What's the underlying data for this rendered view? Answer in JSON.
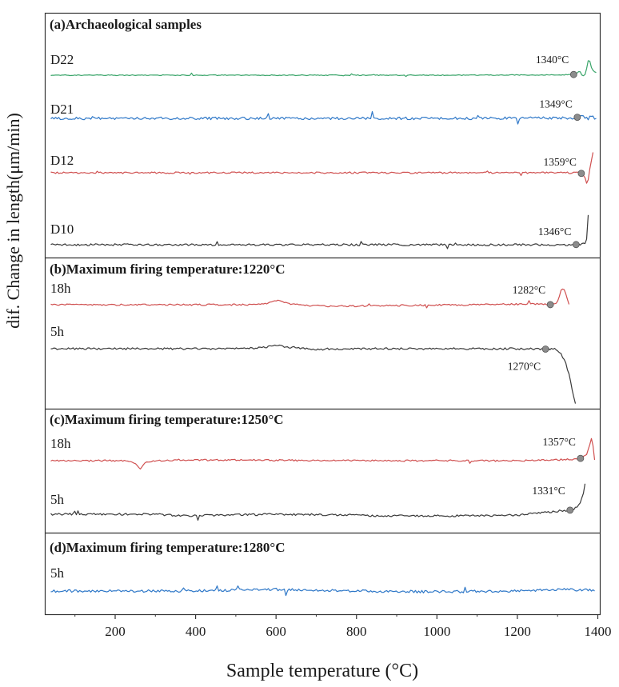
{
  "chart_data": {
    "type": "line",
    "xlabel": "Sample temperature (°C)",
    "ylabel": "dif. Change in length(μm/min)",
    "xlim": [
      25,
      1405
    ],
    "xticks": [
      200,
      400,
      600,
      800,
      1000,
      1200,
      1400
    ],
    "grid": false,
    "colors": {
      "black": "#3a3a3a",
      "red": "#d05050",
      "green": "#3aa56a",
      "blue": "#2f78c8",
      "marker": "#8c8c8c"
    },
    "panels": [
      {
        "title": "(a)Archaeological samples",
        "series": [
          {
            "name": "D22",
            "color": "green",
            "x_start": 40,
            "x_end": 1398,
            "mark_x": 1340,
            "mark_label": "1340°C",
            "profile": [
              [
                40,
                0
              ],
              [
                600,
                0
              ],
              [
                1000,
                0
              ],
              [
                1330,
                0.5
              ],
              [
                1345,
                1
              ],
              [
                1355,
                6
              ],
              [
                1362,
                -2
              ],
              [
                1370,
                2
              ],
              [
                1378,
                22
              ],
              [
                1385,
                8
              ],
              [
                1391,
                4
              ],
              [
                1398,
                3
              ]
            ]
          },
          {
            "name": "D21",
            "color": "blue",
            "x_start": 40,
            "x_end": 1398,
            "mark_x": 1349,
            "mark_label": "1349°C",
            "profile": [
              [
                40,
                0
              ],
              [
                1000,
                0
              ],
              [
                1340,
                0.5
              ],
              [
                1355,
                2
              ],
              [
                1360,
                5
              ],
              [
                1366,
                1
              ],
              [
                1376,
                3
              ],
              [
                1386,
                2
              ],
              [
                1398,
                -1
              ]
            ]
          },
          {
            "name": "D12",
            "color": "red",
            "x_start": 40,
            "x_end": 1392,
            "mark_x": 1359,
            "mark_label": "1359°C",
            "profile": [
              [
                40,
                0
              ],
              [
                1350,
                0
              ],
              [
                1362,
                -1
              ],
              [
                1370,
                -8
              ],
              [
                1374,
                -18
              ],
              [
                1378,
                0
              ],
              [
                1383,
                12
              ],
              [
                1388,
                25
              ],
              [
                1392,
                30
              ]
            ]
          },
          {
            "name": "D10",
            "color": "black",
            "x_start": 40,
            "x_end": 1380,
            "mark_x": 1346,
            "mark_label": "1346°C",
            "profile": [
              [
                40,
                0
              ],
              [
                1340,
                0
              ],
              [
                1355,
                0.5
              ],
              [
                1365,
                1
              ],
              [
                1372,
                4
              ],
              [
                1375,
                30
              ],
              [
                1378,
                50
              ],
              [
                1380,
                60
              ]
            ]
          }
        ]
      },
      {
        "title": "(b)Maximum firing temperature:1220°C",
        "series": [
          {
            "name": "18h",
            "color": "red",
            "x_start": 40,
            "x_end": 1332,
            "mark_x": 1282,
            "mark_label": "1282°C",
            "profile": [
              [
                40,
                0
              ],
              [
                550,
                0
              ],
              [
                580,
                2
              ],
              [
                600,
                5
              ],
              [
                615,
                4
              ],
              [
                630,
                1
              ],
              [
                680,
                -1
              ],
              [
                750,
                -2
              ],
              [
                900,
                -1
              ],
              [
                1100,
                0
              ],
              [
                1250,
                1
              ],
              [
                1285,
                0
              ],
              [
                1300,
                3
              ],
              [
                1310,
                20
              ],
              [
                1318,
                18
              ],
              [
                1325,
                5
              ],
              [
                1332,
                -5
              ]
            ]
          },
          {
            "name": "5h",
            "color": "black",
            "x_start": 40,
            "x_end": 1345,
            "mark_x": 1270,
            "mark_label": "1270°C",
            "profile": [
              [
                40,
                0
              ],
              [
                500,
                0
              ],
              [
                560,
                1
              ],
              [
                600,
                4
              ],
              [
                630,
                2
              ],
              [
                700,
                -1
              ],
              [
                800,
                0
              ],
              [
                1000,
                0
              ],
              [
                1200,
                0
              ],
              [
                1275,
                -0.5
              ],
              [
                1295,
                0
              ],
              [
                1300,
                -2
              ],
              [
                1310,
                -8
              ],
              [
                1320,
                -18
              ],
              [
                1330,
                -35
              ],
              [
                1338,
                -55
              ],
              [
                1345,
                -70
              ]
            ]
          }
        ]
      },
      {
        "title": "(c)Maximum firing temperature:1250°C",
        "series": [
          {
            "name": "18h",
            "color": "red",
            "x_start": 40,
            "x_end": 1395,
            "mark_x": 1357,
            "mark_label": "1357°C",
            "profile": [
              [
                40,
                0
              ],
              [
                230,
                0
              ],
              [
                250,
                -4
              ],
              [
                262,
                -10
              ],
              [
                275,
                -2
              ],
              [
                300,
                0
              ],
              [
                360,
                1
              ],
              [
                800,
                0
              ],
              [
                1200,
                0
              ],
              [
                1300,
                1
              ],
              [
                1340,
                2
              ],
              [
                1360,
                3
              ],
              [
                1372,
                8
              ],
              [
                1380,
                20
              ],
              [
                1386,
                30
              ],
              [
                1390,
                10
              ],
              [
                1395,
                -10
              ]
            ]
          },
          {
            "name": "5h",
            "color": "black",
            "x_start": 40,
            "x_end": 1370,
            "mark_x": 1331,
            "mark_label": "1331°C",
            "profile": [
              [
                40,
                0
              ],
              [
                300,
                0
              ],
              [
                360,
                -2
              ],
              [
                600,
                0
              ],
              [
                820,
                -1
              ],
              [
                840,
                -2
              ],
              [
                1100,
                -2
              ],
              [
                1200,
                -1
              ],
              [
                1280,
                3
              ],
              [
                1320,
                4
              ],
              [
                1340,
                6
              ],
              [
                1355,
                12
              ],
              [
                1365,
                28
              ],
              [
                1370,
                45
              ]
            ]
          }
        ]
      },
      {
        "title": "(d)Maximum firing temperature:1280°C",
        "series": [
          {
            "name": "5h",
            "color": "blue",
            "x_start": 40,
            "x_end": 1395,
            "profile": [
              [
                40,
                0
              ],
              [
                400,
                0
              ],
              [
                600,
                2
              ],
              [
                800,
                0
              ],
              [
                1000,
                -1
              ],
              [
                1200,
                0
              ],
              [
                1270,
                1
              ],
              [
                1300,
                2
              ],
              [
                1395,
                1
              ]
            ]
          }
        ]
      }
    ]
  }
}
